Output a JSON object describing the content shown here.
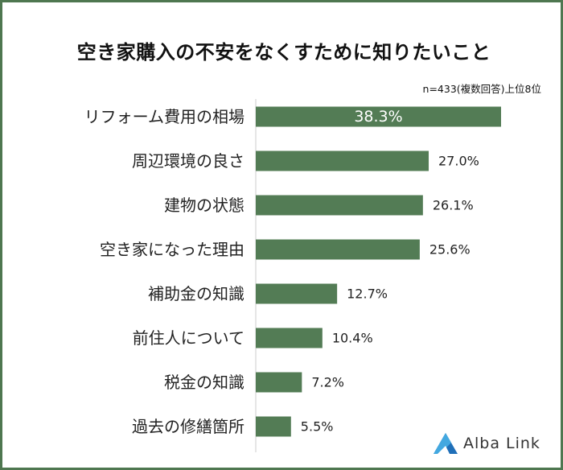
{
  "header": {
    "title": "空き家購入の不安をなくすために知りたいこと",
    "note": "n=433(複数回答)上位8位"
  },
  "brand": {
    "name": "Alba Link",
    "logo_icon": "alba-link-triangle-logo"
  },
  "colors": {
    "bar": "#537c55",
    "frame": "#4e7750",
    "axis": "#cccccc"
  },
  "chart_data": {
    "type": "bar",
    "orientation": "horizontal",
    "categories": [
      "リフォーム費用の相場",
      "周辺環境の良さ",
      "建物の状態",
      "空き家になった理由",
      "補助金の知識",
      "前住人について",
      "税金の知識",
      "過去の修繕箇所"
    ],
    "values": [
      38.3,
      27.0,
      26.1,
      25.6,
      12.7,
      10.4,
      7.2,
      5.5
    ],
    "labels": [
      "38.3%",
      "27.0%",
      "26.1%",
      "25.6%",
      "12.7%",
      "10.4%",
      "7.2%",
      "5.5%"
    ],
    "unit": "%",
    "xlim": [
      0,
      38.3
    ],
    "grid": false,
    "legend": "none"
  }
}
